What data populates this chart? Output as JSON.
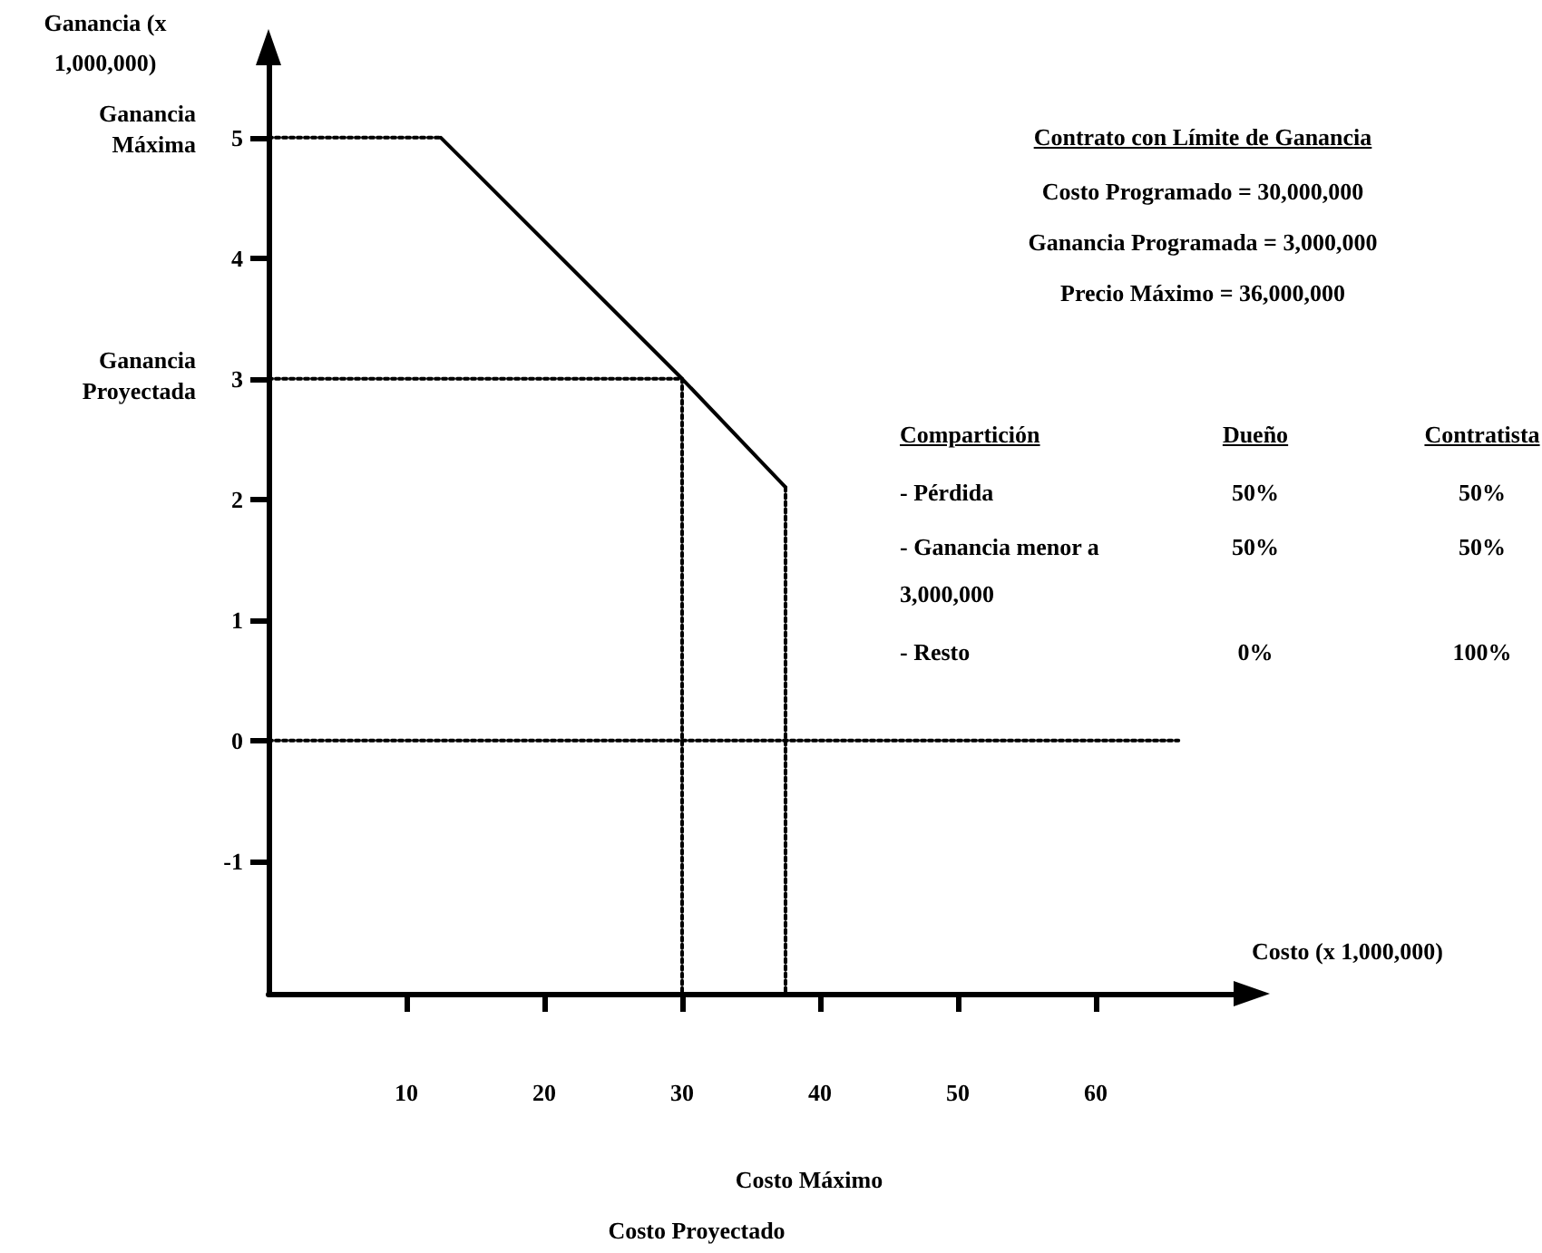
{
  "chart_data": {
    "type": "line",
    "title": "Contrato con Límite de Ganancia",
    "xlabel": "Costo (x 1,000,000)",
    "ylabel": "Ganancia (x 1,000,000)",
    "xlim": [
      0,
      70
    ],
    "xticks": [
      10,
      20,
      30,
      40,
      50,
      60
    ],
    "ylim": [
      -2.1,
      5.6
    ],
    "yticks": [
      -1,
      0,
      1,
      2,
      3,
      4,
      5
    ],
    "grid": false,
    "marker": "none",
    "series": [
      {
        "color": "#000000",
        "x": [
          12.5,
          30,
          37.5
        ],
        "values": [
          5,
          3,
          2.1
        ],
        "line_style": "solid"
      },
      {
        "color": "#000000",
        "x": [
          0,
          12.5
        ],
        "values": [
          5,
          5
        ],
        "line_style": "dotted"
      },
      {
        "color": "#000000",
        "x": [
          0,
          30
        ],
        "values": [
          3,
          3
        ],
        "line_style": "dotted"
      },
      {
        "color": "#000000",
        "x": [
          0,
          66
        ],
        "values": [
          0,
          0
        ],
        "line_style": "dotted"
      },
      {
        "color": "#000000",
        "x": [
          30,
          30
        ],
        "values": [
          3,
          -2.1
        ],
        "line_style": "dotted"
      },
      {
        "color": "#000000",
        "x": [
          37.5,
          37.5
        ],
        "values": [
          2.1,
          -2.1
        ],
        "line_style": "dotted"
      }
    ],
    "annotations": [
      "Ganancia Máxima",
      "Ganancia Proyectada",
      "Costo Máximo",
      "Costo Proyectado",
      "Costo Programado = 30,000,000",
      "Ganancia Programada = 3,000,000",
      "Precio Máximo = 36,000,000",
      "Compartición",
      "Dueño",
      "Contratista",
      "- Pérdida",
      "50%",
      "50%",
      "- Ganancia menor a 3,000,000",
      "50%",
      "50%",
      "- Resto",
      "0%",
      "100%"
    ]
  }
}
